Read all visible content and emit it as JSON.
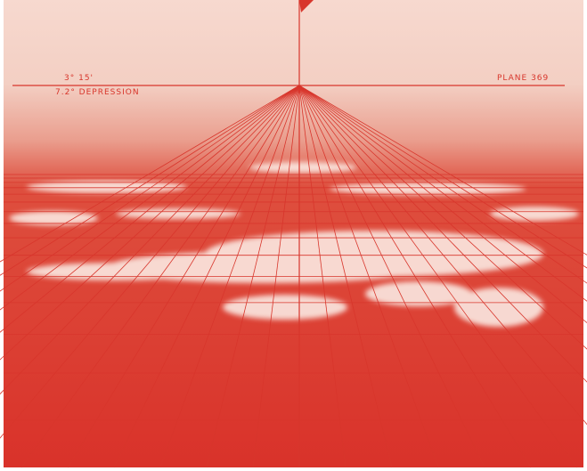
{
  "annotations": {
    "bearing": "3° 15'",
    "depression": "7.2° DEPRESSION",
    "plane": "PLANE 369"
  }
}
